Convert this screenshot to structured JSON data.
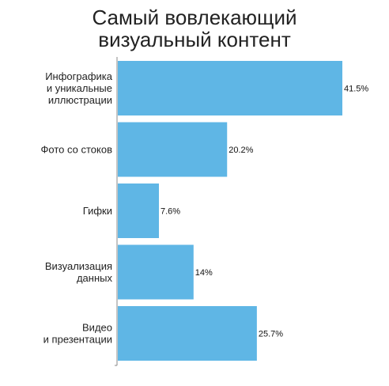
{
  "chart_data": {
    "type": "bar",
    "orientation": "horizontal",
    "title_lines": [
      "Самый вовлекающий",
      "визуальный контент"
    ],
    "categories": [
      [
        "Инфографика",
        "и уникальные",
        "иллюстрации"
      ],
      [
        "Фото со стоков"
      ],
      [
        "Гифки"
      ],
      [
        "Визуализация",
        "данных"
      ],
      [
        "Видео",
        "и презентации"
      ]
    ],
    "values": [
      41.5,
      20.2,
      7.6,
      14,
      25.7
    ],
    "value_labels": [
      "41.5%",
      "20.2%",
      "7.6%",
      "14%",
      "25.7%"
    ],
    "xlim": [
      0,
      41.5
    ],
    "grid": false,
    "legend": "none",
    "bar_color": "#5fb6e5",
    "axis_color": "#888888"
  }
}
